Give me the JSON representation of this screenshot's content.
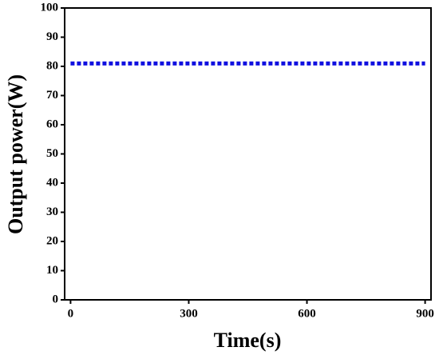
{
  "chart_data": {
    "type": "line",
    "x_label": "Time(s)",
    "y_label": "Output power(W)",
    "x": [
      0,
      900
    ],
    "series": [
      {
        "name": "Output power",
        "color": "#1010e0",
        "values": [
          81,
          81
        ]
      }
    ],
    "xlim": [
      -15,
      915
    ],
    "xticks": [
      0,
      300,
      600,
      900
    ],
    "ylim": [
      0,
      100
    ],
    "yticks": [
      0,
      10,
      20,
      30,
      40,
      50,
      60,
      70,
      80,
      90,
      100
    ],
    "grid": false
  }
}
